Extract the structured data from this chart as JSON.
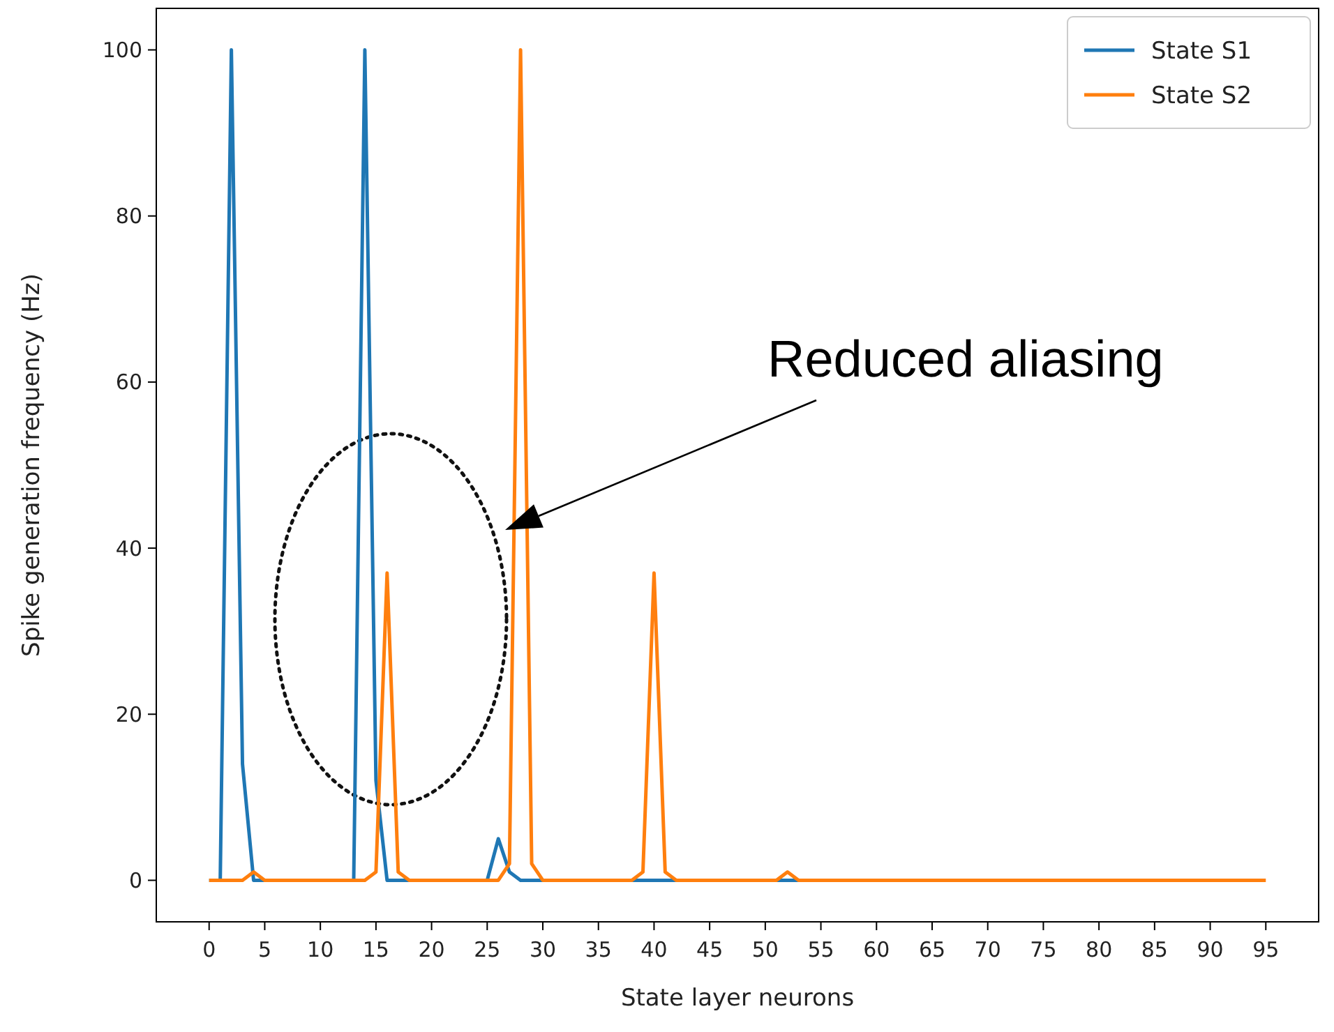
{
  "chart_data": {
    "type": "line",
    "xlabel": "State layer neurons",
    "ylabel": "Spike generation frequency (Hz)",
    "x": [
      0,
      1,
      2,
      3,
      4,
      5,
      6,
      7,
      8,
      9,
      10,
      11,
      12,
      13,
      14,
      15,
      16,
      17,
      18,
      19,
      20,
      21,
      22,
      23,
      24,
      25,
      26,
      27,
      28,
      29,
      30,
      31,
      32,
      33,
      34,
      35,
      36,
      37,
      38,
      39,
      40,
      41,
      42,
      43,
      44,
      45,
      46,
      47,
      48,
      49,
      50,
      51,
      52,
      53,
      54,
      55,
      56,
      57,
      58,
      59,
      60,
      61,
      62,
      63,
      64,
      65,
      66,
      67,
      68,
      69,
      70,
      71,
      72,
      73,
      74,
      75,
      76,
      77,
      78,
      79,
      80,
      81,
      82,
      83,
      84,
      85,
      86,
      87,
      88,
      89,
      90,
      91,
      92,
      93,
      94,
      95
    ],
    "series": [
      {
        "name": "State S1",
        "color": "#1f77b4",
        "values": [
          0,
          0,
          100,
          14,
          0,
          0,
          null,
          null,
          null,
          null,
          null,
          null,
          0,
          0,
          100,
          12,
          0,
          0,
          0,
          null,
          null,
          null,
          null,
          null,
          0,
          0,
          5,
          1,
          0,
          0,
          0,
          null,
          null,
          null,
          null,
          null,
          null,
          null,
          0,
          0,
          0,
          0,
          0,
          null,
          null,
          null,
          null,
          null,
          null,
          null,
          0,
          0,
          0,
          0,
          0,
          null,
          null,
          null,
          null,
          null,
          null,
          null,
          null,
          null,
          null,
          null,
          null,
          null,
          null,
          null,
          null,
          null,
          null,
          null,
          null,
          null,
          null,
          null,
          null,
          null,
          null,
          null,
          null,
          null,
          null,
          null,
          null,
          null,
          null,
          null,
          null,
          null,
          null,
          null,
          null,
          null
        ]
      },
      {
        "name": "State S2",
        "color": "#ff7f0e",
        "values": [
          0,
          0,
          0,
          0,
          1,
          0,
          0,
          0,
          0,
          0,
          0,
          0,
          0,
          0,
          0,
          1,
          37,
          1,
          0,
          0,
          0,
          0,
          0,
          0,
          0,
          0,
          0,
          2,
          100,
          2,
          0,
          0,
          0,
          0,
          0,
          0,
          0,
          0,
          0,
          1,
          37,
          1,
          0,
          0,
          0,
          0,
          0,
          0,
          0,
          0,
          0,
          0,
          1,
          0,
          0,
          0,
          0,
          0,
          0,
          0,
          0,
          0,
          0,
          0,
          0,
          0,
          0,
          0,
          0,
          0,
          0,
          0,
          0,
          0,
          0,
          0,
          0,
          0,
          0,
          0,
          0,
          0,
          0,
          0,
          0,
          0,
          0,
          0,
          0,
          0,
          0,
          0,
          0,
          0,
          0,
          0
        ]
      }
    ],
    "xlim": [
      -4.75,
      99.75
    ],
    "ylim": [
      -5,
      105
    ],
    "xticks": [
      0,
      5,
      10,
      15,
      20,
      25,
      30,
      35,
      40,
      45,
      50,
      55,
      60,
      65,
      70,
      75,
      80,
      85,
      90,
      95
    ],
    "yticks": [
      0,
      20,
      40,
      60,
      80,
      100
    ],
    "annotations": [
      "Reduced aliasing"
    ],
    "grid": false,
    "legend": "top right",
    "marker": "none",
    "line_style": "solid"
  }
}
